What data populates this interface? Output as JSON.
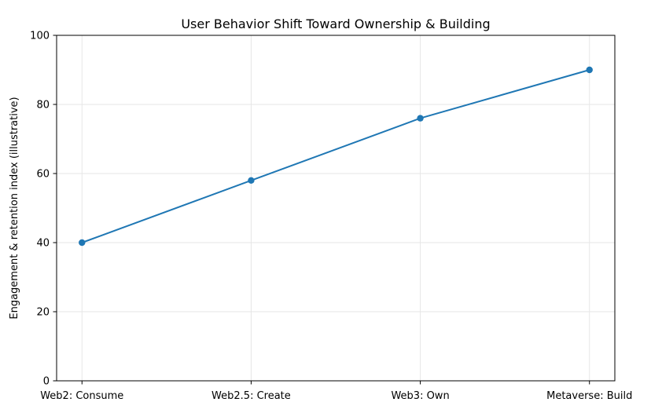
{
  "figure": {
    "background": "#ffffff"
  },
  "chart_data": {
    "type": "line",
    "title": "User Behavior Shift Toward Ownership & Building",
    "categories": [
      "Web2: Consume",
      "Web2.5: Create",
      "Web3: Own",
      "Metaverse: Build"
    ],
    "series": [
      {
        "name": "Engagement & retention index",
        "values": [
          40,
          58,
          76,
          90
        ],
        "color": "#1f77b4",
        "marker": "circle"
      }
    ],
    "xlabel": "",
    "ylabel": "Engagement & retention index (illustrative)",
    "ylim": [
      0,
      100
    ],
    "yticks": [
      0,
      20,
      40,
      60,
      80,
      100
    ],
    "grid": true,
    "grid_color": "#e6e6e6",
    "spine_color": "#000000",
    "legend": "none"
  }
}
